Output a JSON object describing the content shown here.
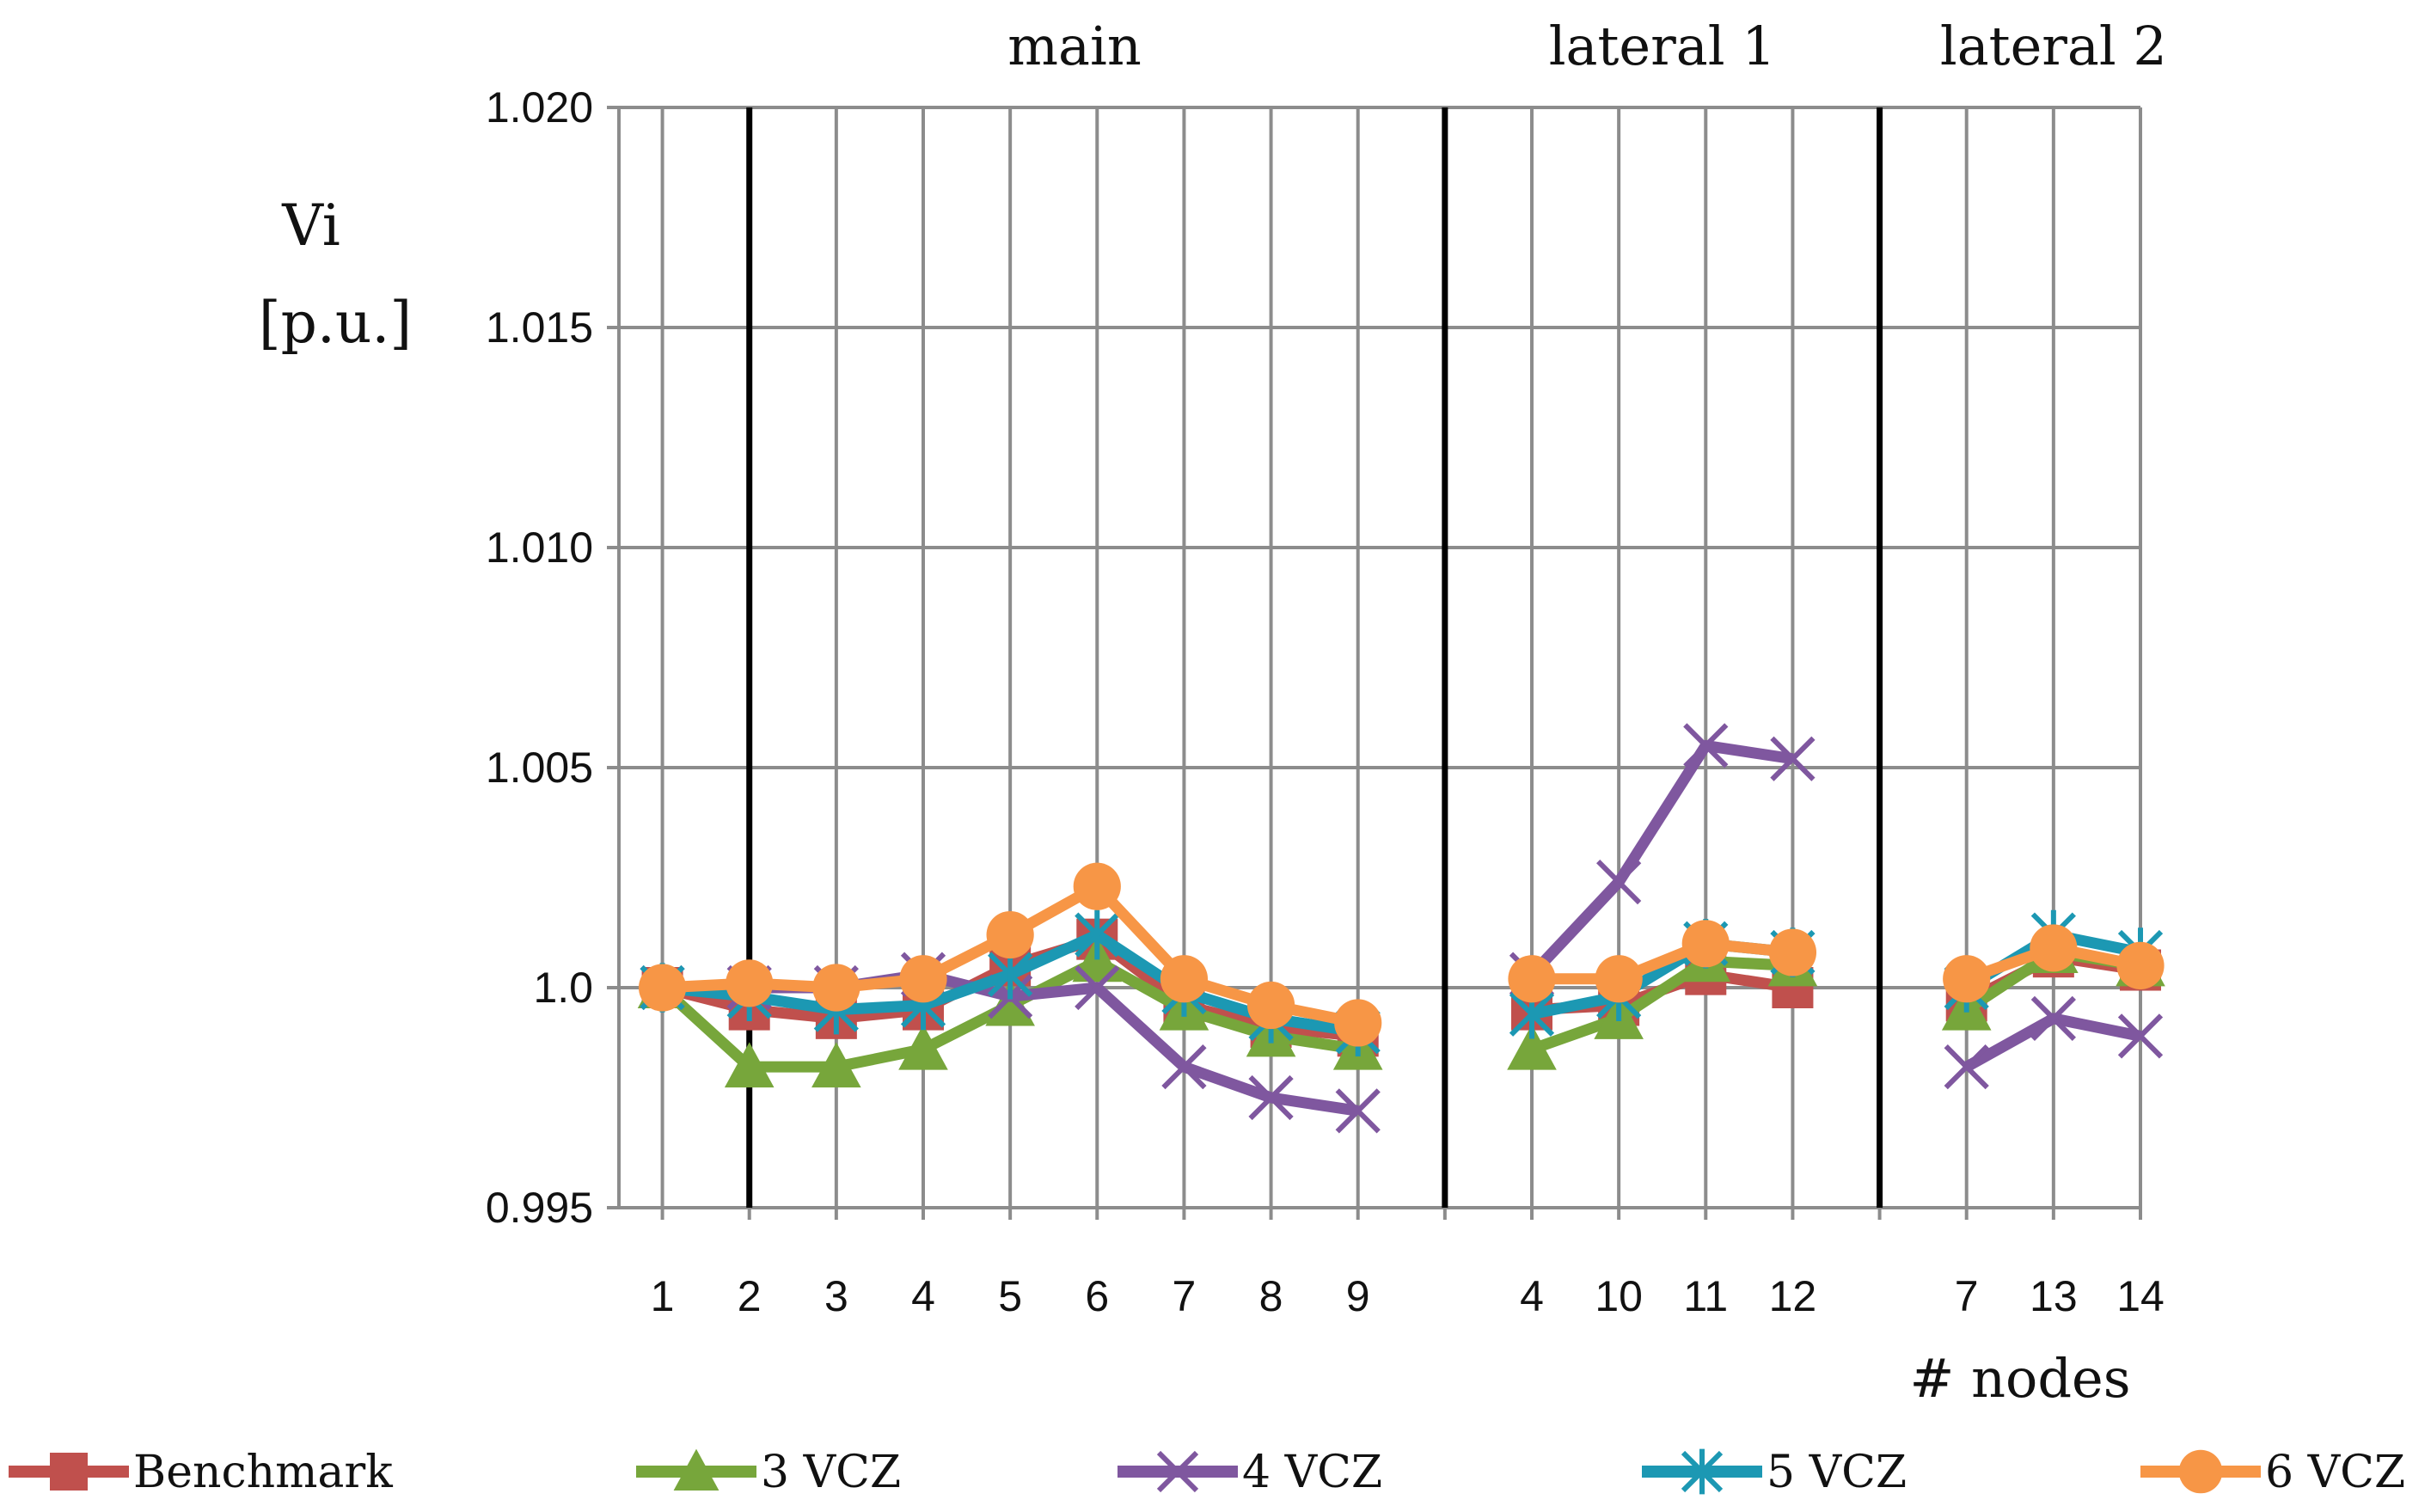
{
  "chart_data": {
    "type": "line",
    "ylabel": "Vi",
    "yunit": "[p.u.]",
    "xlabel": "# nodes",
    "ylim": [
      0.995,
      1.02
    ],
    "yticks": [
      "0.995",
      "1.0",
      "1.005",
      "1.010",
      "1.015",
      "1.020"
    ],
    "ytick_values": [
      0.995,
      1.0,
      1.005,
      1.01,
      1.015,
      1.02
    ],
    "grid": true,
    "legend_position": "bottom",
    "sections": [
      {
        "name": "main",
        "nodes": [
          "1",
          "2",
          "3",
          "4",
          "5",
          "6",
          "7",
          "8",
          "9"
        ]
      },
      {
        "name": "lateral 1",
        "nodes": [
          "4",
          "10",
          "11",
          "12"
        ]
      },
      {
        "name": "lateral 2",
        "nodes": [
          "7",
          "13",
          "14"
        ]
      }
    ],
    "series": [
      {
        "name": "Benchmark",
        "color": "#c0504d",
        "marker": "square",
        "values": [
          [
            1.0,
            0.9995,
            0.9993,
            0.9995,
            1.0005,
            1.0011,
            0.9996,
            0.9991,
            0.9989
          ],
          [
            0.9995,
            0.9996,
            1.0003,
            1.0
          ],
          [
            0.9997,
            1.0007,
            1.0004
          ]
        ]
      },
      {
        "name": "3 VCZ",
        "color": "#77a63b",
        "marker": "triangle",
        "values": [
          [
            1.0,
            0.9982,
            0.9982,
            0.9986,
            0.9996,
            1.0006,
            0.9995,
            0.9989,
            0.9986
          ],
          [
            0.9986,
            0.9993,
            1.0006,
            1.0005
          ],
          [
            0.9995,
            1.0008,
            1.0005
          ]
        ]
      },
      {
        "name": "4 VCZ",
        "color": "#7f579f",
        "marker": "x",
        "values": [
          [
            1.0,
            1.0,
            1.0,
            1.0003,
            0.9998,
            1.0,
            0.9982,
            0.9975,
            0.9972
          ],
          [
            1.0003,
            1.0024,
            1.0055,
            1.0052
          ],
          [
            0.9982,
            0.9993,
            0.9989
          ]
        ]
      },
      {
        "name": "5 VCZ",
        "color": "#1c98b3",
        "marker": "asterisk",
        "values": [
          [
            1.0,
            0.9998,
            0.9995,
            0.9996,
            1.0003,
            1.0012,
            0.9999,
            0.9993,
            0.999
          ],
          [
            0.9994,
            0.9998,
            1.001,
            1.0008
          ],
          [
            1.0,
            1.0012,
            1.0008
          ]
        ]
      },
      {
        "name": "6 VCZ",
        "color": "#f79646",
        "marker": "circle",
        "values": [
          [
            1.0,
            1.0001,
            1.0,
            1.0002,
            1.0012,
            1.0023,
            1.0002,
            0.9996,
            0.9992
          ],
          [
            1.0002,
            1.0002,
            1.001,
            1.0008
          ],
          [
            1.0002,
            1.0009,
            1.0005
          ]
        ]
      }
    ]
  }
}
